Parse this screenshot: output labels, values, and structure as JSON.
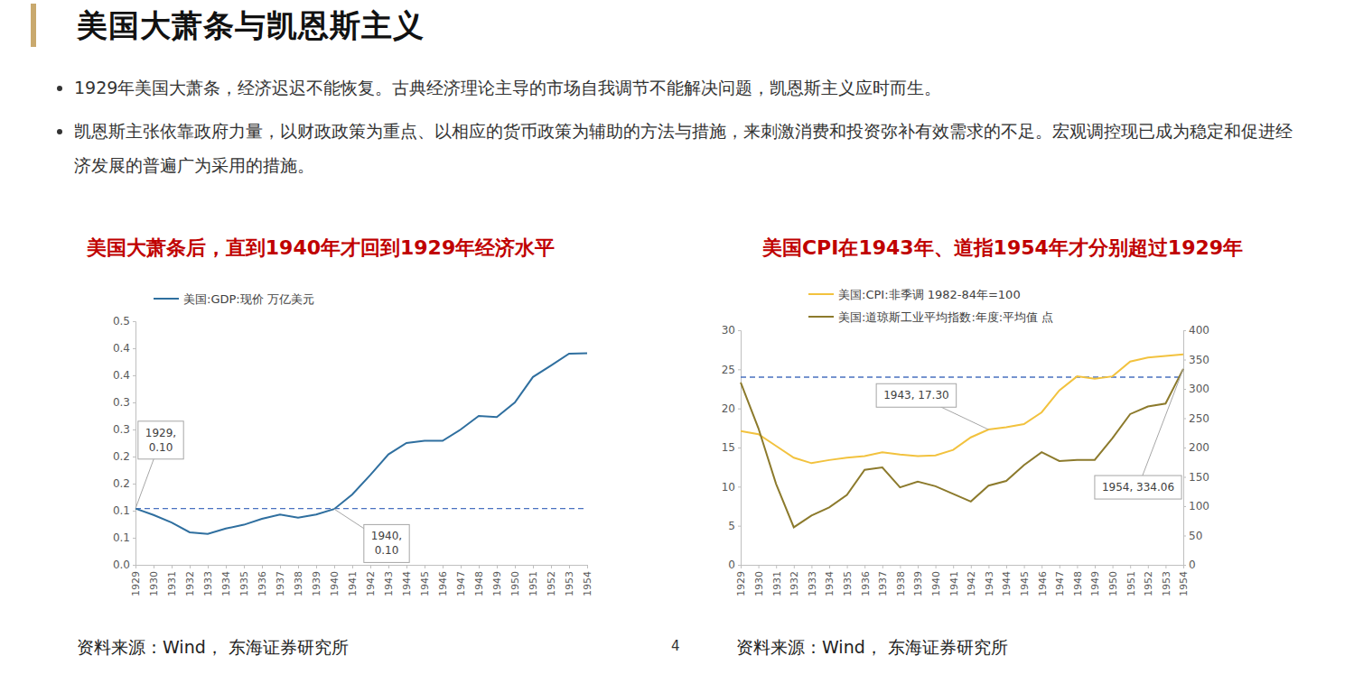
{
  "slide": {
    "title": "美国大萧条与凯恩斯主义",
    "bullets": [
      "1929年美国大萧条，经济迟迟不能恢复。古典经济理论主导的市场自我调节不能解决问题，凯恩斯主义应时而生。",
      "凯恩斯主张依靠政府力量，以财政政策为重点、以相应的货币政策为辅助的方法与措施，来刺激消费和投资弥补有效需求的不足。宏观调控现已成为稳定和促进经济发展的普遍广为采用的措施。"
    ],
    "page": "4"
  },
  "chart_data": [
    {
      "type": "line",
      "title": "美国大萧条后，直到1940年才回到1929年经济水平",
      "categories": [
        "1929",
        "1930",
        "1931",
        "1932",
        "1933",
        "1934",
        "1935",
        "1936",
        "1937",
        "1938",
        "1939",
        "1940",
        "1941",
        "1942",
        "1943",
        "1944",
        "1945",
        "1946",
        "1947",
        "1948",
        "1949",
        "1950",
        "1951",
        "1952",
        "1953",
        "1954"
      ],
      "series": [
        {
          "name": "美国:GDP:现价 万亿美元",
          "color": "#2f6f9f",
          "values": [
            0.104,
            0.092,
            0.078,
            0.06,
            0.057,
            0.067,
            0.074,
            0.085,
            0.093,
            0.087,
            0.093,
            0.103,
            0.13,
            0.166,
            0.204,
            0.225,
            0.229,
            0.229,
            0.25,
            0.275,
            0.273,
            0.3,
            0.347,
            0.368,
            0.39,
            0.391
          ]
        }
      ],
      "ylim": [
        0,
        0.45
      ],
      "yticks": [
        {
          "value": 0,
          "label": "0.0"
        },
        {
          "value": 0.05,
          "label": "0.1"
        },
        {
          "value": 0.1,
          "label": "0.1"
        },
        {
          "value": 0.15,
          "label": "0.2"
        },
        {
          "value": 0.2,
          "label": "0.2"
        },
        {
          "value": 0.25,
          "label": "0.3"
        },
        {
          "value": 0.3,
          "label": "0.3"
        },
        {
          "value": 0.35,
          "label": "0.4"
        },
        {
          "value": 0.4,
          "label": "0.4"
        },
        {
          "value": 0.45,
          "label": "0.5"
        }
      ],
      "legend": "top-left",
      "reference_line": {
        "value": 0.104,
        "color": "#4a72c0",
        "line_style": "dashed"
      },
      "annotations": [
        {
          "x": "1929",
          "y": 0.104,
          "text": "1929, 0.10"
        },
        {
          "x": "1940",
          "y": 0.103,
          "text": "1940, 0.10"
        }
      ],
      "source": "资料来源：Wind， 东海证券研究所"
    },
    {
      "type": "line",
      "title": "美国CPI在1943年、道指1954年才分别超过1929年",
      "categories": [
        "1929",
        "1930",
        "1931",
        "1932",
        "1933",
        "1934",
        "1935",
        "1936",
        "1937",
        "1938",
        "1939",
        "1940",
        "1941",
        "1942",
        "1943",
        "1944",
        "1945",
        "1946",
        "1947",
        "1948",
        "1949",
        "1950",
        "1951",
        "1952",
        "1953",
        "1954"
      ],
      "series": [
        {
          "name": "美国:CPI:非季调 1982-84年=100",
          "color": "#f2c23e",
          "values": [
            17.1,
            16.7,
            15.2,
            13.7,
            13.0,
            13.4,
            13.7,
            13.9,
            14.4,
            14.1,
            13.9,
            14.0,
            14.7,
            16.3,
            17.3,
            17.6,
            18.0,
            19.5,
            22.3,
            24.1,
            23.8,
            24.1,
            26.0,
            26.5,
            26.7,
            26.9
          ]
        },
        {
          "name": "美国:道琼斯工业平均指数:年度:平均值 点",
          "color": "#8c7a2c",
          "axis": "y2",
          "values": [
            311,
            233,
            138,
            64,
            84,
            98,
            119,
            162,
            166,
            132,
            142,
            134,
            121,
            108,
            135,
            143,
            170,
            192,
            177,
            179,
            179,
            216,
            257,
            270,
            275,
            334.06
          ]
        }
      ],
      "ylim": [
        0,
        30
      ],
      "yticks": [
        0,
        5,
        10,
        15,
        20,
        25,
        30
      ],
      "y2lim": [
        0,
        400
      ],
      "y2ticks": [
        0,
        50,
        100,
        150,
        200,
        250,
        300,
        350,
        400
      ],
      "legend": "top-left",
      "reference_line": {
        "value": 320,
        "axis": "y2",
        "color": "#4a72c0",
        "line_style": "dashed"
      },
      "annotations": [
        {
          "x": "1943",
          "y": 17.3,
          "text": "1943, 17.30"
        },
        {
          "x": "1954",
          "y": 334.06,
          "axis": "y2",
          "text": "1954, 334.06"
        }
      ],
      "source": "资料来源：Wind， 东海证券研究所"
    }
  ]
}
